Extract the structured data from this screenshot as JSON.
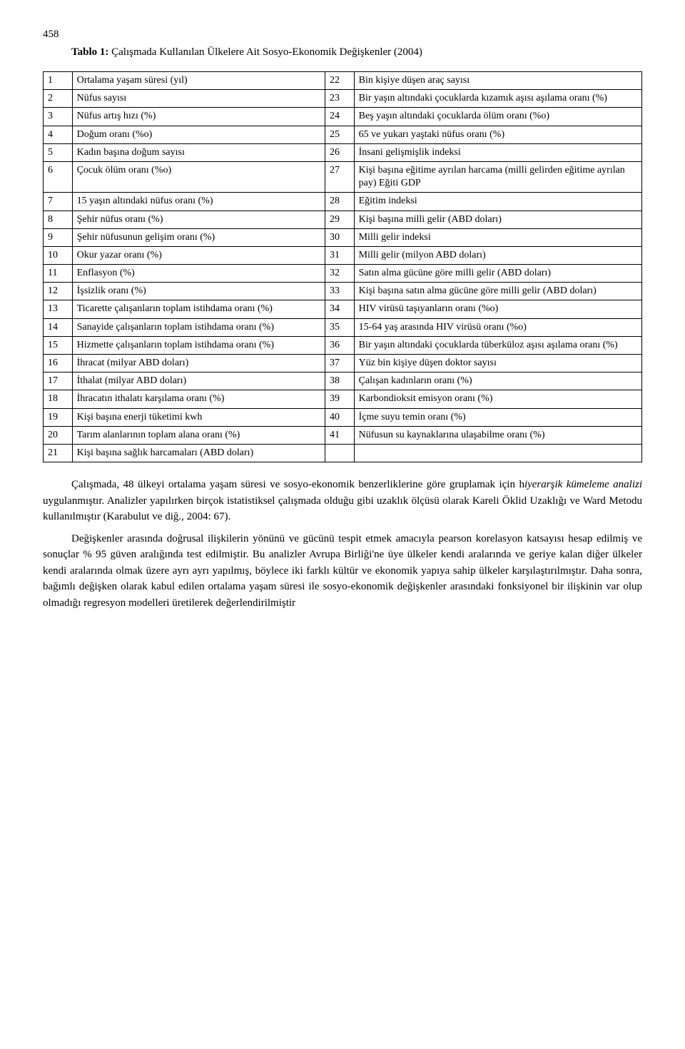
{
  "page_number": "458",
  "title_prefix_bold": "Tablo 1:",
  "title_rest": " Çalışmada Kullanılan Ülkelere Ait Sosyo-Ekonomik Değişkenler (2004)",
  "table": {
    "rows": [
      {
        "ln": "1",
        "lt": "Ortalama yaşam süresi (yıl)",
        "rn": "22",
        "rt": "Bin kişiye düşen araç sayısı"
      },
      {
        "ln": "2",
        "lt": "Nüfus sayısı",
        "rn": "23",
        "rt": "Bir yaşın altındaki çocuklarda kızamık aşısı aşılama oranı (%)"
      },
      {
        "ln": "3",
        "lt": "Nüfus artış hızı (%)",
        "rn": "24",
        "rt": "Beş yaşın altındaki çocuklarda ölüm oranı (%o)"
      },
      {
        "ln": "4",
        "lt": "Doğum oranı (%o)",
        "rn": "25",
        "rt": "65 ve yukarı yaştaki nüfus oranı (%)"
      },
      {
        "ln": "5",
        "lt": "Kadın başına doğum sayısı",
        "rn": "26",
        "rt": "İnsani gelişmişlik indeksi"
      },
      {
        "ln": "6",
        "lt": "Çocuk ölüm oranı (%o)",
        "rn": "27",
        "rt": "Kişi başına eğitime ayrılan harcama (milli gelirden eğitime ayrılan pay) Eğiti GDP"
      },
      {
        "ln": "7",
        "lt": "15 yaşın altındaki nüfus oranı (%)",
        "rn": "28",
        "rt": "Eğitim indeksi"
      },
      {
        "ln": "8",
        "lt": "Şehir nüfus oranı (%)",
        "rn": "29",
        "rt": "Kişi başına milli gelir (ABD doları)"
      },
      {
        "ln": "9",
        "lt": "Şehir nüfusunun gelişim oranı (%)",
        "rn": "30",
        "rt": "Milli gelir indeksi"
      },
      {
        "ln": "10",
        "lt": "Okur yazar oranı (%)",
        "rn": "31",
        "rt": "Milli gelir (milyon ABD doları)"
      },
      {
        "ln": "11",
        "lt": "Enflasyon (%)",
        "rn": "32",
        "rt": "Satın alma gücüne göre milli gelir (ABD doları)"
      },
      {
        "ln": "12",
        "lt": "İşsizlik oranı (%)",
        "rn": "33",
        "rt": "Kişi başına satın alma gücüne göre milli gelir (ABD doları)"
      },
      {
        "ln": "13",
        "lt": "Ticarette çalışanların toplam istihdama oranı (%)",
        "rn": "34",
        "rt": "HIV virüsü taşıyanların oranı (%o)"
      },
      {
        "ln": "14",
        "lt": "Sanayide çalışanların toplam istihdama oranı (%)",
        "rn": "35",
        "rt": "15-64 yaş arasında HIV virüsü oranı (%o)"
      },
      {
        "ln": "15",
        "lt": "Hizmette çalışanların toplam istihdama oranı (%)",
        "rn": "36",
        "rt": "Bir yaşın altındaki çocuklarda tüberküloz aşısı aşılama oranı (%)"
      },
      {
        "ln": "16",
        "lt": "İhracat (milyar ABD doları)",
        "rn": "37",
        "rt": "Yüz bin kişiye düşen doktor sayısı"
      },
      {
        "ln": "17",
        "lt": "İthalat (milyar ABD doları)",
        "rn": "38",
        "rt": "Çalışan kadınların oranı (%)"
      },
      {
        "ln": "18",
        "lt": "İhracatın ithalatı karşılama oranı (%)",
        "rn": "39",
        "rt": "Karbondioksit emisyon oranı (%)"
      },
      {
        "ln": "19",
        "lt": "Kişi başına enerji tüketimi kwh",
        "rn": "40",
        "rt": "İçme suyu temin oranı (%)"
      },
      {
        "ln": "20",
        "lt": "Tarım alanlarının toplam alana oranı (%)",
        "rn": "41",
        "rt": "Nüfusun su kaynaklarına ulaşabilme oranı (%)"
      },
      {
        "ln": "21",
        "lt": "Kişi başına sağlık harcamaları (ABD doları)",
        "rn": "",
        "rt": ""
      }
    ]
  },
  "paragraphs": {
    "p1_a": "Çalışmada, 48 ülkeyi ortalama yaşam süresi ve sosyo-ekonomik benzerliklerine göre gruplamak için h",
    "p1_i": "iyerarşik kümeleme analizi",
    "p1_b": " uygulanmıştır. Analizler yapılırken birçok istatistiksel çalışmada olduğu gibi uzaklık ölçüsü olarak Kareli Öklid Uzaklığı ve Ward Metodu kullanılmıştır (Karabulut ve diğ., 2004: 67).",
    "p2": "Değişkenler arasında doğrusal ilişkilerin yönünü ve gücünü tespit etmek amacıyla pearson korelasyon katsayısı hesap edilmiş ve sonuçlar % 95 güven aralığında test edilmiştir. Bu analizler Avrupa Birliği'ne üye ülkeler kendi aralarında ve geriye kalan diğer ülkeler kendi aralarında olmak üzere ayrı ayrı yapılmış, böylece iki farklı kültür ve ekonomik yapıya sahip ülkeler karşılaştırılmıştır. Daha sonra, bağımlı değişken olarak kabul edilen ortalama yaşam süresi ile sosyo-ekonomik değişkenler arasındaki fonksiyonel bir ilişkinin var olup olmadığı regresyon modelleri üretilerek değerlendirilmiştir"
  }
}
